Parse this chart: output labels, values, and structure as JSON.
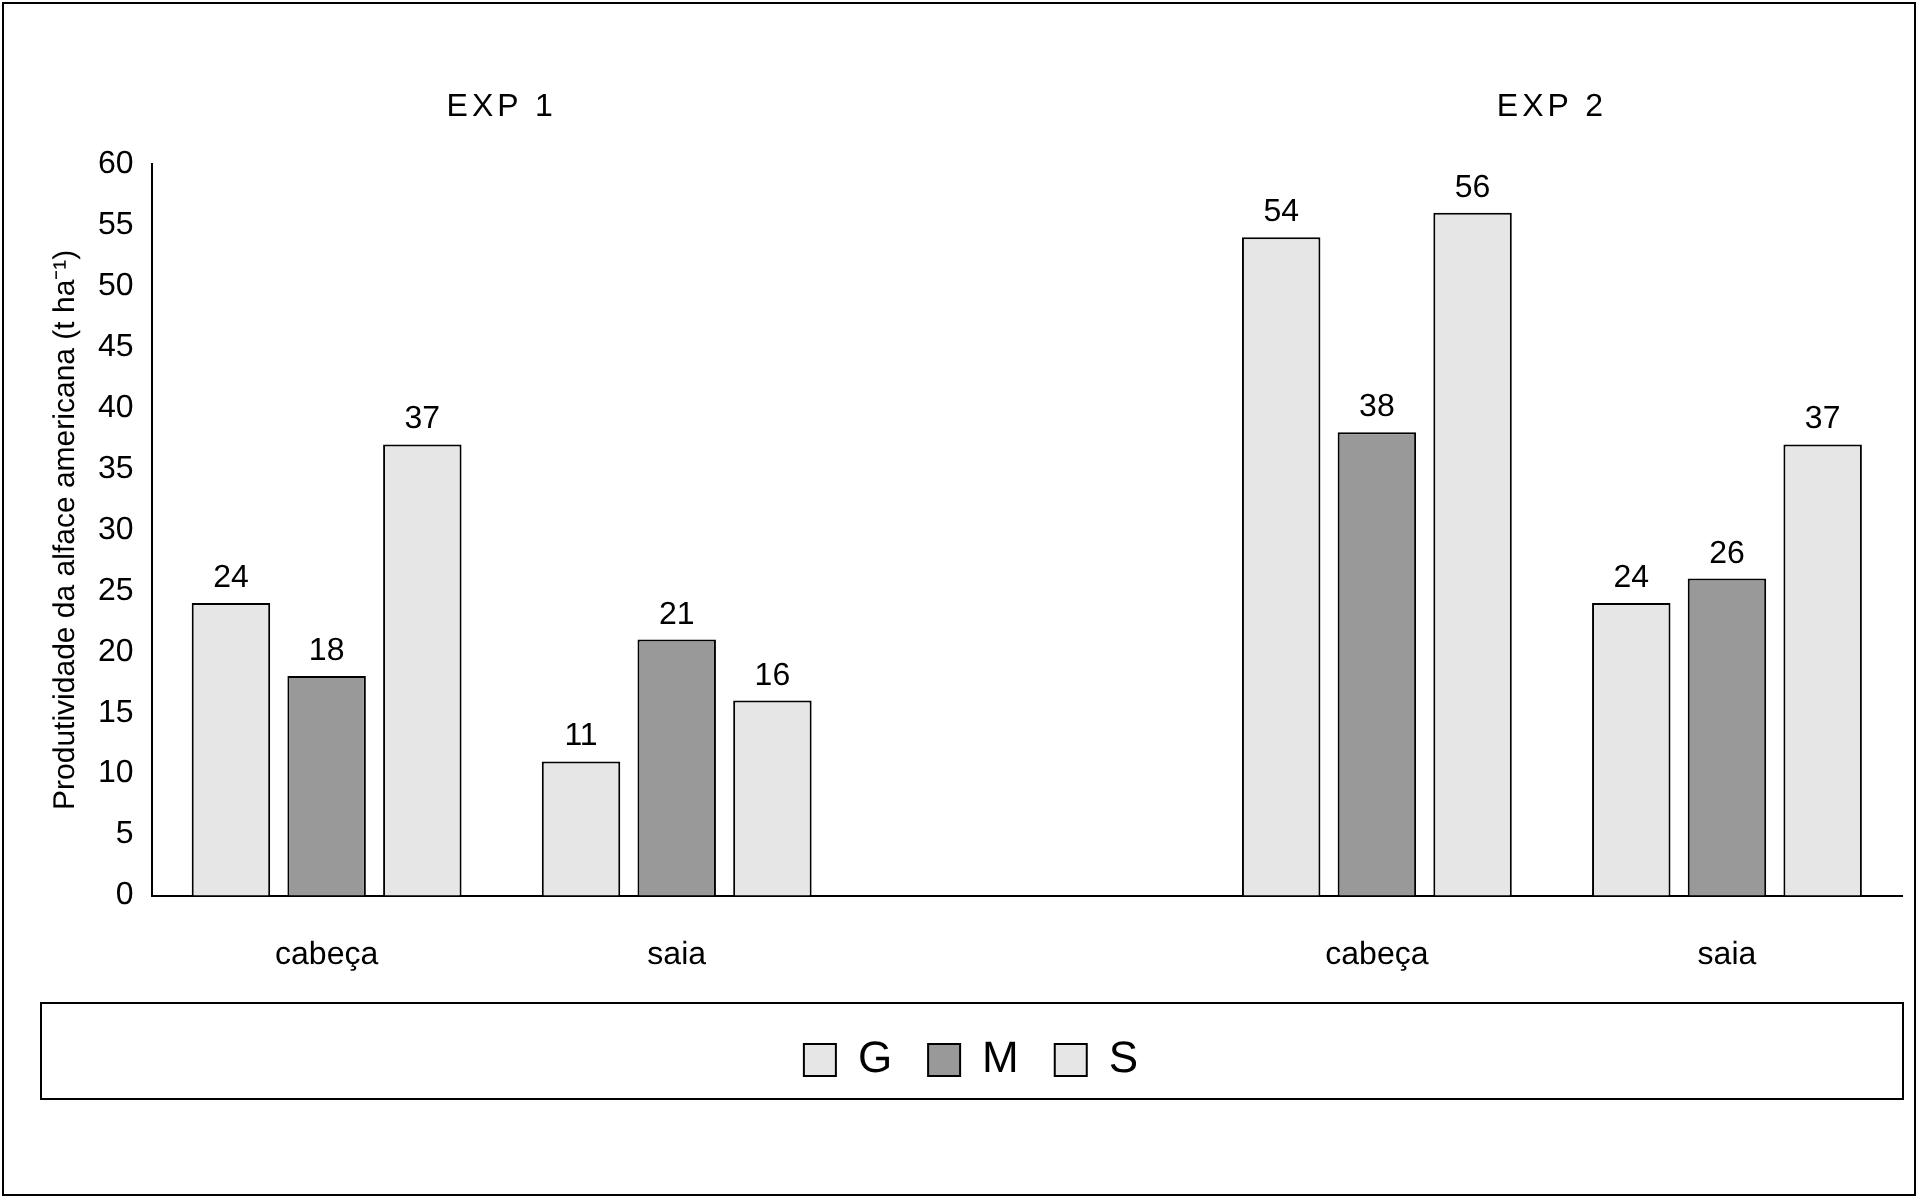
{
  "chart_data": {
    "type": "bar",
    "ylabel": "Produtividade da alface americana (t ha⁻¹)",
    "categories": [
      "cabeça",
      "saia",
      null,
      "cabeça",
      "saia"
    ],
    "series": [
      {
        "name": "G",
        "color": "#e6e6e6",
        "values": [
          24,
          11,
          null,
          54,
          24
        ]
      },
      {
        "name": "M",
        "color": "#999999",
        "values": [
          18,
          21,
          null,
          38,
          26
        ]
      },
      {
        "name": "S",
        "color": "#e6e6e6",
        "values": [
          37,
          16,
          null,
          56,
          37
        ]
      }
    ],
    "ylim": [
      0,
      60
    ],
    "yticks": [
      0,
      5,
      10,
      15,
      20,
      25,
      30,
      35,
      40,
      45,
      50,
      55,
      60
    ],
    "grid": false,
    "legend": "bottom",
    "data_labels": true,
    "annotations": [
      "EXP 1",
      "EXP 2"
    ]
  }
}
